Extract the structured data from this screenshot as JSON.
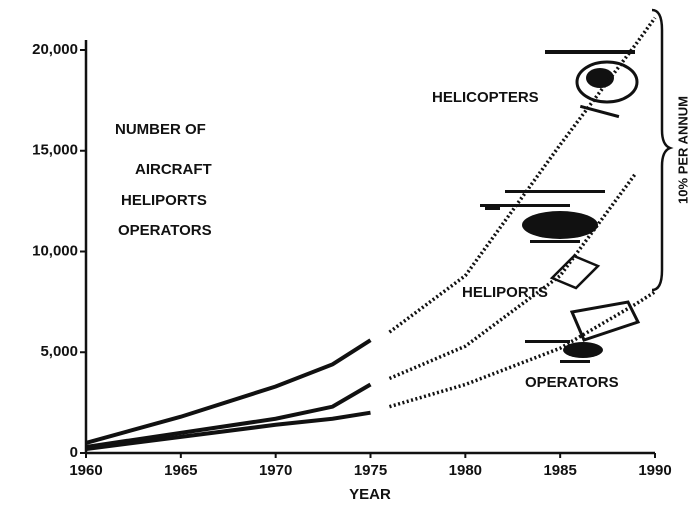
{
  "chart_data": {
    "type": "line",
    "xlabel": "YEAR",
    "x": [
      1960,
      1965,
      1970,
      1973,
      1975,
      1976,
      1980,
      1985,
      1989,
      1990
    ],
    "projection_start": 1976,
    "series": [
      {
        "name": "HELICOPTERS",
        "color": "#111111",
        "values": [
          500,
          1800,
          3300,
          4400,
          5600,
          6000,
          8800,
          15300,
          20300,
          21600
        ]
      },
      {
        "name": "HELIPORTS",
        "color": "#111111",
        "values": [
          300,
          1000,
          1700,
          2300,
          3400,
          3700,
          5300,
          8800,
          13900,
          null
        ]
      },
      {
        "name": "OPERATORS",
        "color": "#111111",
        "values": [
          200,
          800,
          1400,
          1700,
          2000,
          2300,
          3400,
          5200,
          7400,
          8000
        ]
      }
    ],
    "ylabel_lines": [
      "NUMBER OF",
      "AIRCRAFT",
      "HELIPORTS",
      "OPERATORS"
    ],
    "annotation": "10% PER ANNUM",
    "xlim": [
      1960,
      1990
    ],
    "xticks": [
      1960,
      1965,
      1970,
      1975,
      1980,
      1985,
      1990
    ],
    "ylim": [
      0,
      20000
    ],
    "yticks": [
      0,
      {
        "value": 5000,
        "label": "5,000"
      },
      {
        "value": 10000,
        "label": "10,000"
      },
      {
        "value": 15000,
        "label": "15,000"
      },
      {
        "value": 20000,
        "label": "20,000"
      }
    ]
  }
}
